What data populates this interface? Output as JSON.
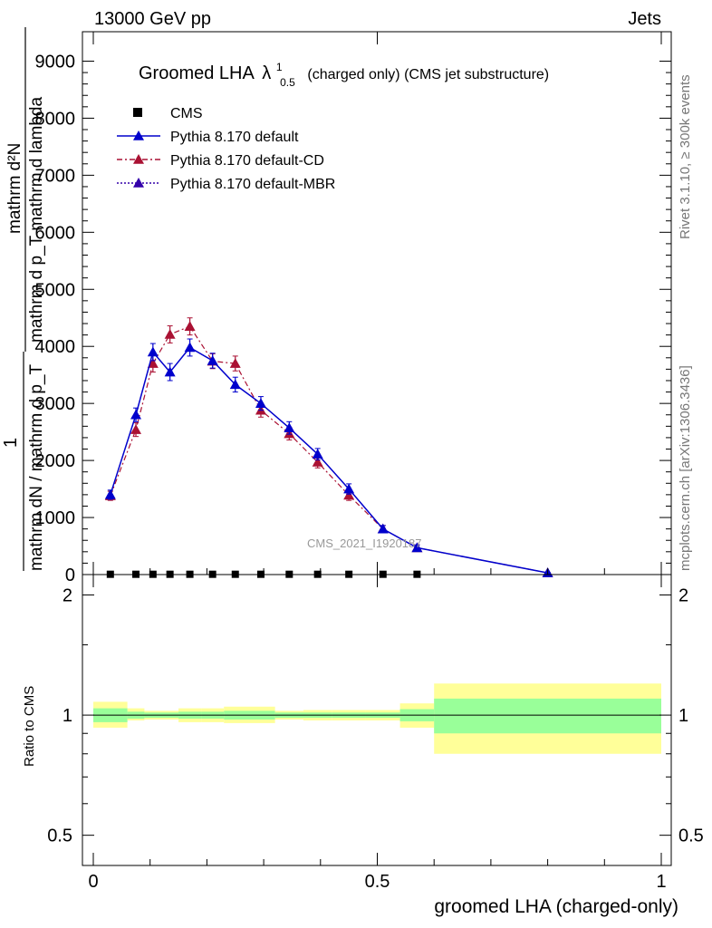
{
  "header": {
    "left": "13000 GeV pp",
    "right": "Jets"
  },
  "side_labels": {
    "rivet": "Rivet 3.1.10, ≥ 300k events",
    "mcplots": "mcplots.cern.ch [arXiv:1306.3436]"
  },
  "watermark": "CMS_2021_I1920187",
  "title": {
    "main": "Groomed LHA",
    "lambda": "λ",
    "sup": "1",
    "sub": "0.5",
    "suffix": "(charged only) (CMS jet substructure)"
  },
  "ylabel": {
    "top_num": "mathrm d²N",
    "top_den": "mathrm d p_T mathrm d lambda",
    "one": "1",
    "bottom_den": "mathrm dN / mathrm d p_T"
  },
  "ratio_ylabel": "Ratio to CMS",
  "xlabel": "groomed LHA (charged-only)",
  "colors": {
    "default": "#0000cc",
    "cd": "#aa1133",
    "mbr": "#3300aa",
    "band_inner": "#99ff99",
    "band_outer": "#ffff99"
  },
  "chart_data": {
    "type": "line",
    "title": "Groomed LHA λ^1_0.5 (charged only) (CMS jet substructure)",
    "xlabel": "groomed LHA (charged-only)",
    "xlim": [
      0,
      1
    ],
    "main_ylim": [
      0,
      9500
    ],
    "main_yticks": [
      0,
      1000,
      2000,
      3000,
      4000,
      5000,
      6000,
      7000,
      8000,
      9000
    ],
    "main_ytick_labels": [
      "0",
      "1000",
      "2000",
      "3000",
      "4000",
      "5000",
      "6000",
      "7000",
      "8000",
      "9000"
    ],
    "ratio_ylim": [
      0.42,
      2.25
    ],
    "ratio_yticks": [
      0.5,
      1,
      2
    ],
    "ratio_ytick_labels": [
      "0.5",
      "1",
      "2"
    ],
    "xticks": [
      0,
      0.5,
      1
    ],
    "xtick_labels": [
      "0",
      "0.5",
      "1"
    ],
    "legend": [
      {
        "label": "CMS",
        "style": "square"
      },
      {
        "label": "Pythia 8.170 default",
        "style": "solid"
      },
      {
        "label": "Pythia 8.170 default-CD",
        "style": "dashdot"
      },
      {
        "label": "Pythia 8.170 default-MBR",
        "style": "dotted"
      }
    ],
    "cms": {
      "name": "CMS",
      "x": [
        0.03,
        0.075,
        0.105,
        0.135,
        0.17,
        0.21,
        0.25,
        0.295,
        0.345,
        0.395,
        0.45,
        0.51,
        0.57
      ],
      "y": [
        5,
        5,
        5,
        5,
        5,
        5,
        5,
        5,
        5,
        5,
        5,
        5,
        5
      ]
    },
    "series": [
      {
        "name": "Pythia 8.170 default",
        "x": [
          0.03,
          0.075,
          0.105,
          0.135,
          0.17,
          0.21,
          0.25,
          0.295,
          0.345,
          0.395,
          0.45,
          0.51,
          0.57,
          0.8
        ],
        "y": [
          1400,
          2800,
          3900,
          3550,
          3980,
          3750,
          3330,
          3000,
          2570,
          2110,
          1500,
          800,
          470,
          30
        ],
        "err": [
          80,
          120,
          150,
          150,
          150,
          130,
          130,
          120,
          110,
          100,
          90,
          60,
          50,
          10
        ]
      },
      {
        "name": "Pythia 8.170 default-CD",
        "x": [
          0.03,
          0.075,
          0.105,
          0.135,
          0.17,
          0.21,
          0.25,
          0.295,
          0.345,
          0.395,
          0.45,
          0.51,
          0.57,
          0.8
        ],
        "y": [
          1380,
          2540,
          3700,
          4210,
          4350,
          3740,
          3700,
          2880,
          2470,
          1970,
          1390,
          800,
          470,
          30
        ],
        "err": [
          80,
          120,
          150,
          150,
          150,
          130,
          130,
          120,
          110,
          100,
          90,
          60,
          50,
          10
        ]
      },
      {
        "name": "Pythia 8.170 default-MBR",
        "x": [],
        "y": []
      }
    ],
    "ratio_band": {
      "edges": [
        0,
        0.06,
        0.09,
        0.15,
        0.19,
        0.23,
        0.32,
        0.37,
        0.42,
        0.48,
        0.54,
        0.6,
        1.0
      ],
      "inner_lo": [
        0.96,
        0.98,
        0.985,
        0.98,
        0.98,
        0.975,
        0.985,
        0.985,
        0.985,
        0.985,
        0.965,
        0.9
      ],
      "inner_hi": [
        1.04,
        1.02,
        1.015,
        1.02,
        1.02,
        1.025,
        1.015,
        1.015,
        1.015,
        1.015,
        1.035,
        1.1
      ],
      "outer_lo": [
        0.93,
        0.97,
        0.975,
        0.96,
        0.96,
        0.955,
        0.975,
        0.97,
        0.97,
        0.97,
        0.93,
        0.8
      ],
      "outer_hi": [
        1.08,
        1.04,
        1.025,
        1.04,
        1.04,
        1.05,
        1.025,
        1.03,
        1.03,
        1.03,
        1.07,
        1.2
      ]
    }
  }
}
